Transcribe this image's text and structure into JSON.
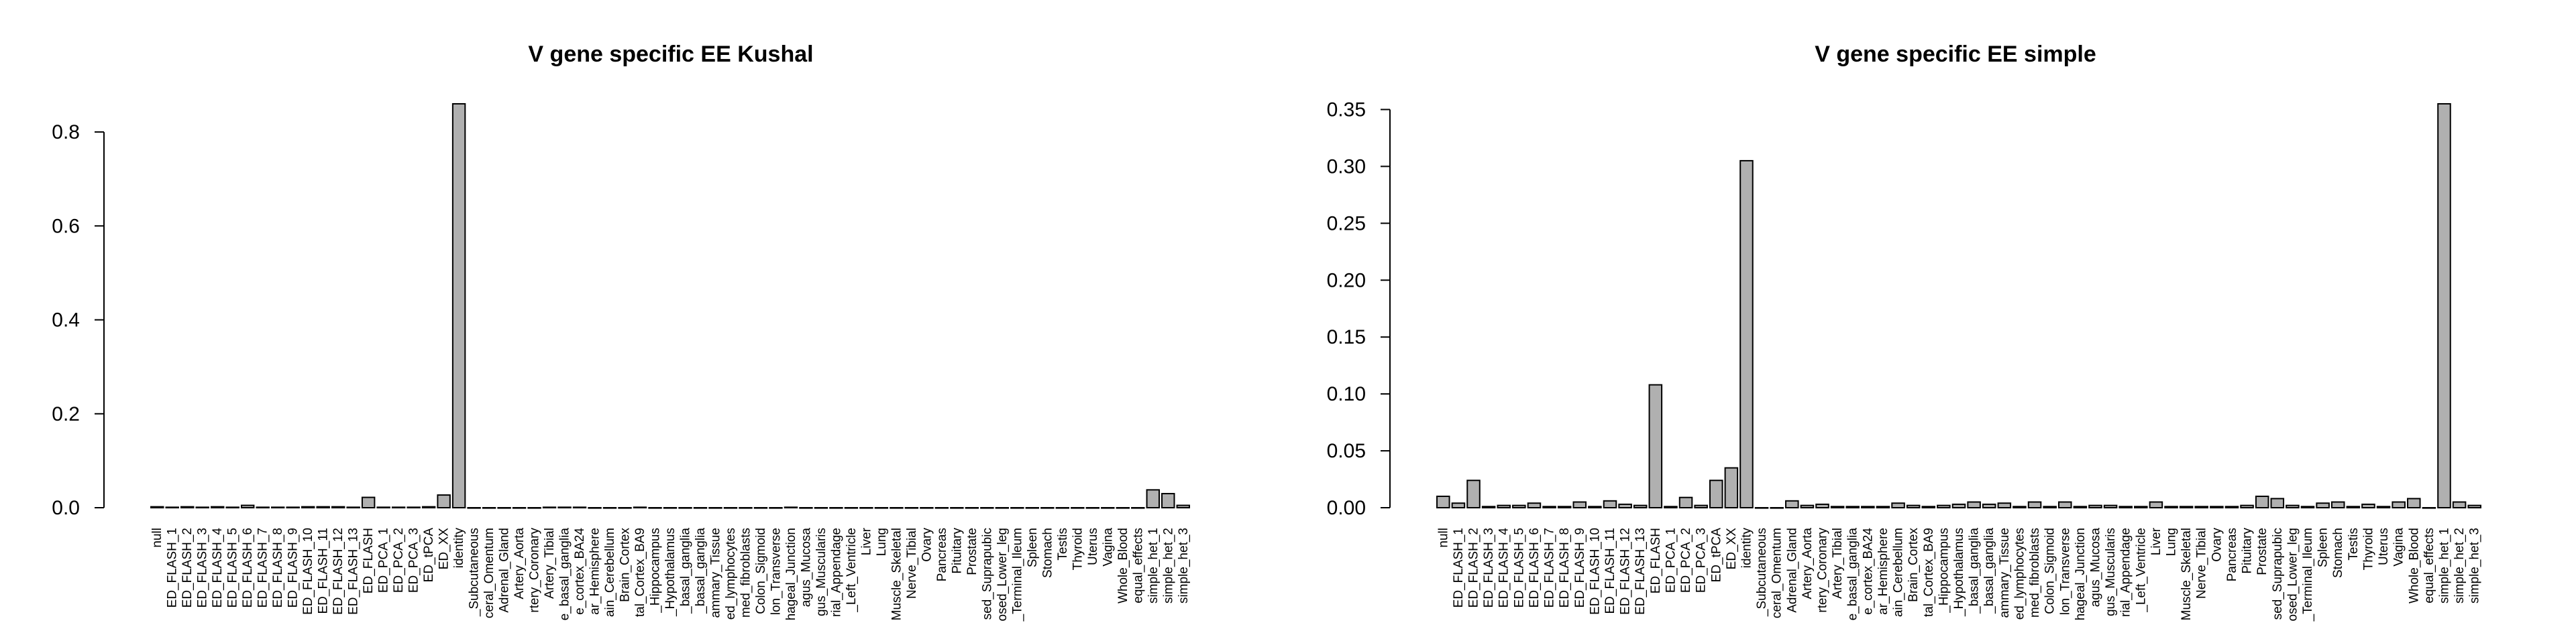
{
  "chart_data": [
    {
      "type": "bar",
      "title": "V gene specific EE Kushal",
      "xlabel": "",
      "ylabel": "",
      "ylim": [
        0,
        0.86
      ],
      "yticks": [
        "0.0",
        "0.2",
        "0.4",
        "0.6",
        "0.8"
      ],
      "ytick_values": [
        0,
        0.2,
        0.4,
        0.6,
        0.8
      ],
      "categories": [
        "null",
        "ED_FLASH_1",
        "ED_FLASH_2",
        "ED_FLASH_3",
        "ED_FLASH_4",
        "ED_FLASH_5",
        "ED_FLASH_6",
        "ED_FLASH_7",
        "ED_FLASH_8",
        "ED_FLASH_9",
        "ED_FLASH_10",
        "ED_FLASH_11",
        "ED_FLASH_12",
        "ED_FLASH_13",
        "ED_FLASH",
        "ED_PCA_1",
        "ED_PCA_2",
        "ED_PCA_3",
        "ED_tPCA",
        "ED_XX",
        "identity",
        "_Subcutaneous",
        "ceral_Omentum",
        "Adrenal_Gland",
        "Artery_Aorta",
        "rtery_Coronary",
        "Artery_Tibial",
        "e_basal_ganglia",
        "e_cortex_BA24",
        "ar_Hemisphere",
        "ain_Cerebellum",
        "Brain_Cortex",
        "tal_Cortex_BA9",
        "_Hippocampus",
        "_Hypothalamus",
        "_basal_ganglia",
        "_basal_ganglia",
        "ammary_Tissue",
        "ed_lymphocytes",
        "med_fibroblasts",
        "Colon_Sigmoid",
        "lon_Transverse",
        "hageal_Junction",
        "agus_Mucosa",
        "gus_Muscularis",
        "rial_Appendage",
        "_Left_Ventricle",
        "Liver",
        "Lung",
        "Muscle_Skeletal",
        "Nerve_Tibial",
        "Ovary",
        "Pancreas",
        "Pituitary",
        "Prostate",
        "sed_Suprapubic",
        "osed_Lower_leg",
        "_Terminal_Ileum",
        "Spleen",
        "Stomach",
        "Testis",
        "Thyroid",
        "Uterus",
        "Vagina",
        "Whole_Blood",
        "equal_effects",
        "simple_het_1",
        "simple_het_2",
        "simple_het_3"
      ],
      "values": [
        0.002,
        0.001,
        0.002,
        0.001,
        0.002,
        0.001,
        0.005,
        0.001,
        0.001,
        0.001,
        0.002,
        0.002,
        0.002,
        0.001,
        0.022,
        0.001,
        0.001,
        0.001,
        0.002,
        0.027,
        0.86,
        0,
        0,
        0,
        0,
        0,
        0.001,
        0.001,
        0.001,
        0,
        0,
        0,
        0.001,
        0,
        0,
        0,
        0,
        0,
        0,
        0,
        0,
        0,
        0.001,
        0,
        0,
        0,
        0,
        0,
        0,
        0,
        0,
        0,
        0,
        0,
        0,
        0,
        0,
        0,
        0,
        0,
        0,
        0,
        0,
        0,
        0,
        0,
        0.038,
        0.03,
        0.005
      ]
    },
    {
      "type": "bar",
      "title": "V gene specific EE simple",
      "xlabel": "",
      "ylabel": "",
      "ylim": [
        0,
        0.355
      ],
      "yticks": [
        "0.00",
        "0.05",
        "0.10",
        "0.15",
        "0.20",
        "0.25",
        "0.30",
        "0.35"
      ],
      "ytick_values": [
        0,
        0.05,
        0.1,
        0.15,
        0.2,
        0.25,
        0.3,
        0.35
      ],
      "categories": [
        "null",
        "ED_FLASH_1",
        "ED_FLASH_2",
        "ED_FLASH_3",
        "ED_FLASH_4",
        "ED_FLASH_5",
        "ED_FLASH_6",
        "ED_FLASH_7",
        "ED_FLASH_8",
        "ED_FLASH_9",
        "ED_FLASH_10",
        "ED_FLASH_11",
        "ED_FLASH_12",
        "ED_FLASH_13",
        "ED_FLASH",
        "ED_PCA_1",
        "ED_PCA_2",
        "ED_PCA_3",
        "ED_tPCA",
        "ED_XX",
        "identity",
        "_Subcutaneous",
        "ceral_Omentum",
        "Adrenal_Gland",
        "Artery_Aorta",
        "rtery_Coronary",
        "Artery_Tibial",
        "e_basal_ganglia",
        "e_cortex_BA24",
        "ar_Hemisphere",
        "ain_Cerebellum",
        "Brain_Cortex",
        "tal_Cortex_BA9",
        "_Hippocampus",
        "_Hypothalamus",
        "_basal_ganglia",
        "_basal_ganglia",
        "ammary_Tissue",
        "ed_lymphocytes",
        "med_fibroblasts",
        "Colon_Sigmoid",
        "lon_Transverse",
        "hageal_Junction",
        "agus_Mucosa",
        "gus_Muscularis",
        "rial_Appendage",
        "_Left_Ventricle",
        "Liver",
        "Lung",
        "Muscle_Skeletal",
        "Nerve_Tibial",
        "Ovary",
        "Pancreas",
        "Pituitary",
        "Prostate",
        "sed_Suprapubic",
        "osed_Lower_leg",
        "_Terminal_Ileum",
        "Spleen",
        "Stomach",
        "Testis",
        "Thyroid",
        "Uterus",
        "Vagina",
        "Whole_Blood",
        "equal_effects",
        "simple_het_1",
        "simple_het_2",
        "simple_het_3"
      ],
      "values": [
        0.01,
        0.004,
        0.024,
        0.001,
        0.002,
        0.002,
        0.004,
        0.001,
        0.001,
        0.005,
        0.001,
        0.006,
        0.003,
        0.002,
        0.108,
        0.001,
        0.009,
        0.002,
        0.024,
        0.035,
        0.305,
        0,
        0,
        0.006,
        0.002,
        0.003,
        0.001,
        0.001,
        0.001,
        0.001,
        0.004,
        0.002,
        0.001,
        0.002,
        0.003,
        0.005,
        0.003,
        0.004,
        0.001,
        0.005,
        0.001,
        0.005,
        0.001,
        0.002,
        0.002,
        0.001,
        0.001,
        0.005,
        0.001,
        0.001,
        0.001,
        0.001,
        0.001,
        0.002,
        0.01,
        0.008,
        0.002,
        0.001,
        0.004,
        0.005,
        0.001,
        0.003,
        0.001,
        0.005,
        0.008,
        0,
        0.355,
        0.005,
        0.002
      ]
    }
  ]
}
